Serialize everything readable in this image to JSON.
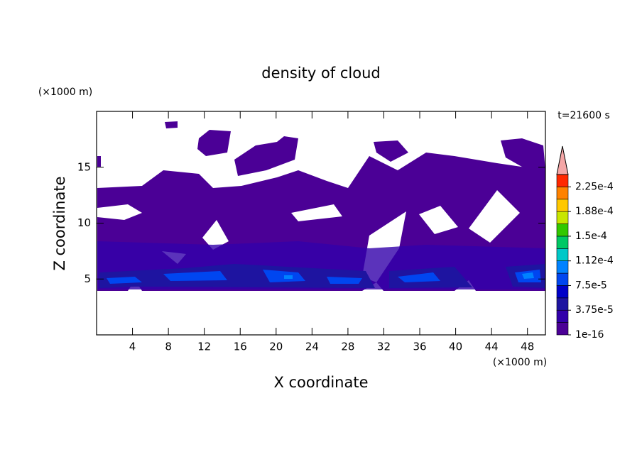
{
  "chart_data": {
    "type": "contour",
    "title": "density of cloud",
    "x_label": "X coordinate",
    "y_label": "Z coordinate",
    "x_unit": "(×1000 m)",
    "y_unit": "(×1000 m)",
    "annotation": "t=21600 s",
    "xlim": [
      0,
      50
    ],
    "ylim": [
      0,
      20
    ],
    "xticks": [
      4,
      8,
      12,
      16,
      20,
      24,
      28,
      32,
      36,
      40,
      44,
      48
    ],
    "yticks": [
      5,
      10,
      15
    ],
    "colorbar": {
      "clim": [
        1e-16,
        0.00024375
      ],
      "ticks": [
        {
          "value": 1e-16,
          "label": "1e-16"
        },
        {
          "value": 3.75e-05,
          "label": "3.75e-5"
        },
        {
          "value": 7.5e-05,
          "label": "7.5e-5"
        },
        {
          "value": 0.0001125,
          "label": "1.12e-4"
        },
        {
          "value": 0.00015,
          "label": "1.5e-4"
        },
        {
          "value": 0.0001875,
          "label": "1.88e-4"
        },
        {
          "value": 0.000225,
          "label": "2.25e-4"
        }
      ],
      "colors": [
        "#4b0096",
        "#3200aa",
        "#1e14a0",
        "#0000c8",
        "#0046f0",
        "#0082ff",
        "#00c8c8",
        "#00c864",
        "#32c800",
        "#c8e600",
        "#ffc800",
        "#ff8200",
        "#ff2800"
      ],
      "extend_color": "#f4a6a6"
    }
  }
}
